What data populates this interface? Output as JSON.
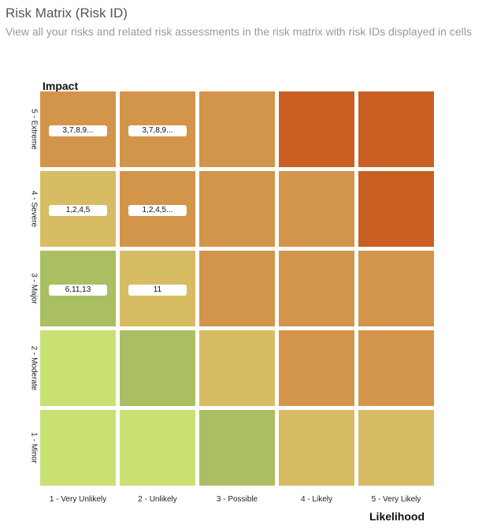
{
  "header": {
    "title": "Risk Matrix (Risk ID)",
    "subtitle": "View all your risks and related risk assessments in the risk matrix with risk IDs displayed in cells"
  },
  "chart_data": {
    "type": "heatmap",
    "ylabel": "Impact",
    "xlabel": "Likelihood",
    "x_categories": [
      "1 - Very Unlikely",
      "2 - Unlikely",
      "3 - Possible",
      "4 - Likely",
      "5 - Very Likely"
    ],
    "y_categories": [
      "5 - Extreme",
      "4 - Severe",
      "3 - Major",
      "2 - Moderate",
      "1 - Minor"
    ],
    "palette": {
      "green_light": "#c9e173",
      "green": "#aabe62",
      "yellow": "#d8bc63",
      "orange": "#d39549",
      "red": "#c96021"
    },
    "cells": [
      {
        "row": 0,
        "col": 0,
        "level": "orange",
        "label": "3,7,8,9..."
      },
      {
        "row": 0,
        "col": 1,
        "level": "orange",
        "label": "3,7,8,9..."
      },
      {
        "row": 0,
        "col": 2,
        "level": "orange",
        "label": ""
      },
      {
        "row": 0,
        "col": 3,
        "level": "red",
        "label": ""
      },
      {
        "row": 0,
        "col": 4,
        "level": "red",
        "label": ""
      },
      {
        "row": 1,
        "col": 0,
        "level": "yellow",
        "label": "1,2,4,5"
      },
      {
        "row": 1,
        "col": 1,
        "level": "orange",
        "label": "1,2,4,5..."
      },
      {
        "row": 1,
        "col": 2,
        "level": "orange",
        "label": ""
      },
      {
        "row": 1,
        "col": 3,
        "level": "orange",
        "label": ""
      },
      {
        "row": 1,
        "col": 4,
        "level": "red",
        "label": ""
      },
      {
        "row": 2,
        "col": 0,
        "level": "green",
        "label": "6,11,13"
      },
      {
        "row": 2,
        "col": 1,
        "level": "yellow",
        "label": "11"
      },
      {
        "row": 2,
        "col": 2,
        "level": "orange",
        "label": ""
      },
      {
        "row": 2,
        "col": 3,
        "level": "orange",
        "label": ""
      },
      {
        "row": 2,
        "col": 4,
        "level": "orange",
        "label": ""
      },
      {
        "row": 3,
        "col": 0,
        "level": "green_light",
        "label": ""
      },
      {
        "row": 3,
        "col": 1,
        "level": "green",
        "label": ""
      },
      {
        "row": 3,
        "col": 2,
        "level": "yellow",
        "label": ""
      },
      {
        "row": 3,
        "col": 3,
        "level": "orange",
        "label": ""
      },
      {
        "row": 3,
        "col": 4,
        "level": "orange",
        "label": ""
      },
      {
        "row": 4,
        "col": 0,
        "level": "green_light",
        "label": ""
      },
      {
        "row": 4,
        "col": 1,
        "level": "green_light",
        "label": ""
      },
      {
        "row": 4,
        "col": 2,
        "level": "green",
        "label": ""
      },
      {
        "row": 4,
        "col": 3,
        "level": "yellow",
        "label": ""
      },
      {
        "row": 4,
        "col": 4,
        "level": "yellow",
        "label": ""
      }
    ]
  }
}
